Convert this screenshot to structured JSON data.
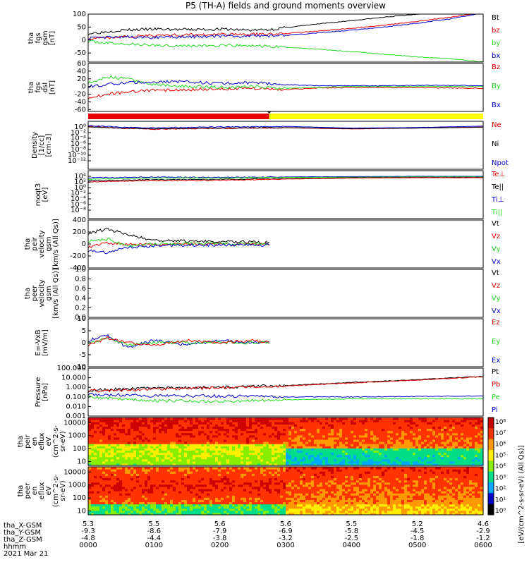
{
  "title": "P5 (TH-A) fields and ground moments overview",
  "colors": {
    "black": "#000000",
    "red": "#e60000",
    "green": "#22dd22",
    "blue": "#0000cc",
    "yellow": "#ffff00",
    "bar_red": "#e60000"
  },
  "chart_data": [
    {
      "type": "line",
      "id": "fgs_gsm",
      "ylabel": [
        "tha",
        "fgs",
        "gsm",
        "[nT]"
      ],
      "ylim": [
        -85,
        100
      ],
      "yticks": [
        100,
        50,
        0,
        -50
      ],
      "legend": [
        "Bt",
        "bz",
        "by",
        "bx"
      ],
      "legend_colors": [
        "black",
        "red",
        "green",
        "blue"
      ],
      "series": [
        {
          "name": "Bt",
          "color": "black",
          "x": [
            0,
            0.5,
            1,
            1.5,
            2,
            2.5,
            2.75,
            3,
            3.5,
            4,
            4.5,
            5,
            5.5,
            6
          ],
          "y": [
            25,
            38,
            42,
            40,
            42,
            38,
            40,
            48,
            62,
            75,
            88,
            100,
            112,
            125
          ]
        },
        {
          "name": "bz",
          "color": "red",
          "x": [
            0,
            0.5,
            1,
            1.5,
            2,
            2.5,
            3,
            3.5,
            4,
            4.5,
            5,
            5.5,
            6
          ],
          "y": [
            5,
            12,
            18,
            20,
            22,
            22,
            25,
            35,
            45,
            58,
            72,
            88,
            108
          ]
        },
        {
          "name": "by",
          "color": "green",
          "x": [
            0,
            0.5,
            1,
            1.5,
            2,
            2.5,
            3,
            3.5,
            4,
            4.5,
            5,
            5.5,
            6
          ],
          "y": [
            -5,
            -15,
            -20,
            -22,
            -22,
            -22,
            -28,
            -35,
            -45,
            -55,
            -65,
            -72,
            -85
          ]
        },
        {
          "name": "bx",
          "color": "blue",
          "x": [
            0,
            0.5,
            1,
            1.5,
            2,
            2.5,
            3,
            3.5,
            4,
            4.5,
            5,
            5.5,
            6
          ],
          "y": [
            8,
            12,
            10,
            12,
            14,
            15,
            18,
            28,
            38,
            50,
            65,
            82,
            105
          ]
        }
      ]
    },
    {
      "type": "line",
      "id": "fgs_dsl",
      "ylabel": [
        "tha",
        "fgs",
        "dsl",
        "[nT]"
      ],
      "ylim": [
        -65,
        60
      ],
      "yticks": [
        60,
        40,
        20,
        0,
        -20,
        -40,
        -60
      ],
      "legend": [
        "Bz",
        "By",
        "Bx"
      ],
      "legend_colors": [
        "red",
        "green",
        "blue"
      ],
      "series": [
        {
          "name": "Bz",
          "color": "red",
          "x": [
            0,
            0.3,
            0.6,
            1,
            1.5,
            2,
            2.5,
            3,
            3.5,
            4,
            4.5,
            5,
            5.5,
            6
          ],
          "y": [
            -30,
            -20,
            -15,
            -10,
            -8,
            -6,
            -5,
            -8,
            -4,
            -3,
            -3,
            -3,
            -4,
            -5
          ]
        },
        {
          "name": "By",
          "color": "green",
          "x": [
            0,
            0.3,
            0.6,
            1,
            1.5,
            2,
            2.5,
            3,
            3.5,
            4,
            4.5,
            5,
            5.5,
            6
          ],
          "y": [
            10,
            25,
            20,
            5,
            0,
            -2,
            0,
            -5,
            -2,
            0,
            0,
            0,
            0,
            0
          ]
        },
        {
          "name": "Bx",
          "color": "blue",
          "x": [
            0,
            0.3,
            0.6,
            1,
            1.5,
            2,
            2.5,
            3,
            3.5,
            4,
            4.5,
            5,
            5.5,
            6
          ],
          "y": [
            0,
            5,
            10,
            12,
            12,
            8,
            10,
            5,
            2,
            2,
            2,
            3,
            3,
            2
          ]
        }
      ]
    },
    {
      "type": "bar",
      "id": "mode_bar",
      "segments": [
        {
          "start": 0,
          "end": 2.75,
          "color": "red"
        },
        {
          "start": 2.75,
          "end": 6,
          "color": "yellow"
        }
      ]
    },
    {
      "type": "line",
      "id": "density",
      "yscale": "log",
      "ylabel": [
        "Density",
        "[1/cc]",
        "[cm-3]"
      ],
      "ylim_exp": [
        -15,
        2
      ],
      "ytick_labels": [
        "10⁰",
        "10⁻²",
        "10⁻⁴",
        "10⁻⁶",
        "10⁻⁸",
        "10⁻¹⁰",
        "10⁻¹²"
      ],
      "ytick_exps": [
        0,
        -2,
        -4,
        -6,
        -8,
        -10,
        -12
      ],
      "legend": [
        "Ne",
        "Ni",
        "Npot"
      ],
      "legend_colors": [
        "red",
        "black",
        "blue"
      ],
      "series": [
        {
          "name": "Ne",
          "color": "red",
          "x": [
            0,
            0.5,
            1,
            2,
            3,
            4,
            5,
            6
          ],
          "y_exp": [
            0.3,
            -0.5,
            -0.8,
            -0.5,
            -0.3,
            -0.7,
            -0.4,
            0.0
          ]
        },
        {
          "name": "Ni",
          "color": "black",
          "x": [
            0,
            0.5,
            1,
            2,
            3,
            4,
            5,
            6
          ],
          "y_exp": [
            0.1,
            -0.4,
            -0.6,
            -0.4,
            -0.2,
            -0.6,
            -0.4,
            -0.1
          ]
        },
        {
          "name": "Npot",
          "color": "blue",
          "x": [
            0,
            0.5,
            1,
            2,
            3,
            4,
            5,
            6
          ],
          "y_exp": [
            0.5,
            -0.1,
            -0.3,
            0.0,
            0.2,
            -0.4,
            -0.2,
            0.3
          ]
        }
      ]
    },
    {
      "type": "line",
      "id": "temps",
      "yscale": "log",
      "ylabel": [
        "moqt3",
        "[eV]"
      ],
      "ylim_exp": [
        -11,
        6
      ],
      "ytick_labels": [
        "10⁴",
        "10²",
        "10⁰",
        "10⁻²",
        "10⁻⁴",
        "10⁻⁶",
        "10⁻⁸"
      ],
      "ytick_exps": [
        4,
        2,
        0,
        -2,
        -4,
        -6,
        -8
      ],
      "legend": [
        "Te⊥",
        "Te||",
        "Ti⊥",
        "Ti||"
      ],
      "legend_colors": [
        "red",
        "black",
        "blue",
        "green"
      ],
      "series": [
        {
          "name": "Ti⊥",
          "color": "blue",
          "x": [
            0,
            1,
            2,
            3,
            4,
            5,
            6
          ],
          "y_exp": [
            3.5,
            3.7,
            3.6,
            3.8,
            3.9,
            4.0,
            4.0
          ]
        },
        {
          "name": "Ti||",
          "color": "green",
          "x": [
            0,
            1,
            2,
            3,
            4,
            5,
            6
          ],
          "y_exp": [
            3.0,
            3.4,
            3.4,
            3.6,
            3.7,
            3.8,
            3.8
          ]
        },
        {
          "name": "Te||",
          "color": "black",
          "x": [
            0,
            1,
            2,
            3,
            4,
            5,
            6
          ],
          "y_exp": [
            2.4,
            2.8,
            2.9,
            3.2,
            3.5,
            3.6,
            3.6
          ]
        },
        {
          "name": "Te⊥",
          "color": "red",
          "x": [
            0,
            1,
            2,
            3,
            4,
            5,
            6
          ],
          "y_exp": [
            2.0,
            2.5,
            2.6,
            3.0,
            3.4,
            3.5,
            3.5
          ]
        }
      ]
    },
    {
      "type": "line",
      "id": "peir_vel",
      "ylabel": [
        "tha",
        "peir",
        "velocity",
        "gsm",
        "[km/s (All Qs)]"
      ],
      "ylim": [
        -400,
        400
      ],
      "yticks": [
        400,
        200,
        0,
        -200,
        -400
      ],
      "legend": [
        "Vt",
        "Vz",
        "Vy",
        "Vx"
      ],
      "legend_colors": [
        "black",
        "red",
        "green",
        "blue"
      ],
      "series": [
        {
          "name": "Vt",
          "color": "black",
          "x": [
            0,
            0.3,
            0.6,
            1,
            1.5,
            2,
            2.5,
            2.75
          ],
          "y": [
            180,
            250,
            150,
            60,
            50,
            40,
            30,
            20
          ]
        },
        {
          "name": "Vz",
          "color": "red",
          "x": [
            0,
            0.3,
            0.6,
            1,
            1.5,
            2,
            2.5,
            2.75
          ],
          "y": [
            -50,
            20,
            0,
            -10,
            0,
            -5,
            0,
            0
          ]
        },
        {
          "name": "Vy",
          "color": "green",
          "x": [
            0,
            0.3,
            0.6,
            1,
            1.5,
            2,
            2.5,
            2.75
          ],
          "y": [
            50,
            80,
            -40,
            0,
            10,
            0,
            5,
            0
          ]
        },
        {
          "name": "Vx",
          "color": "blue",
          "x": [
            0,
            0.3,
            0.6,
            1,
            1.5,
            2,
            2.5,
            2.75
          ],
          "y": [
            -100,
            -150,
            -60,
            -30,
            -20,
            -20,
            -20,
            -10
          ]
        }
      ]
    },
    {
      "type": "line",
      "id": "peer_vel",
      "ylabel": [
        "tha",
        "peer",
        "velocity",
        "gsm",
        "[km/s (All Qs)]"
      ],
      "ylim": [
        0,
        1
      ],
      "yticks": [
        1.0,
        0.8,
        0.6,
        0.4,
        0.2,
        0.0
      ],
      "ytick_labels": [
        "1.0",
        "0.8",
        "0.6",
        "0.4",
        "0.2",
        "0.0"
      ],
      "legend": [
        "Vt",
        "Vz",
        "Vy",
        "Vx"
      ],
      "legend_colors": [
        "black",
        "red",
        "green",
        "blue"
      ],
      "series": []
    },
    {
      "type": "line",
      "id": "efield",
      "ylabel": [
        "E=-VxB",
        "[mV/m]"
      ],
      "ylim": [
        -10,
        10
      ],
      "yticks": [
        10,
        5,
        0,
        -5,
        -10
      ],
      "legend": [
        "Ez",
        "Ey",
        "Ex"
      ],
      "legend_colors": [
        "red",
        "green",
        "blue"
      ],
      "series": [
        {
          "name": "Ex",
          "color": "blue",
          "x": [
            0,
            0.3,
            0.6,
            1,
            1.5,
            2,
            2.5,
            2.75
          ],
          "y": [
            1,
            3,
            -2,
            1,
            -1,
            1,
            0,
            0
          ]
        },
        {
          "name": "Ey",
          "color": "green",
          "x": [
            0,
            0.3,
            0.6,
            1,
            1.5,
            2,
            2.5,
            2.75
          ],
          "y": [
            0,
            2,
            -1,
            0,
            0,
            0,
            0,
            0
          ]
        },
        {
          "name": "Ez",
          "color": "red",
          "x": [
            0,
            0.3,
            0.6,
            1,
            1.5,
            2,
            2.5,
            2.75
          ],
          "y": [
            -1,
            2,
            0,
            -1,
            1,
            0,
            1,
            0
          ]
        }
      ]
    },
    {
      "type": "line",
      "id": "pressure",
      "yscale": "log",
      "ylabel": [
        "Pressure",
        "[nPa]"
      ],
      "ylim_exp": [
        -3,
        2
      ],
      "ytick_labels": [
        "100.000",
        "10.000",
        "1.000",
        "0.100",
        "0.010",
        "0.001"
      ],
      "ytick_exps": [
        2,
        1,
        0,
        -1,
        -2,
        -3
      ],
      "legend": [
        "Pt",
        "Pb",
        "Pe",
        "Pi"
      ],
      "legend_colors": [
        "black",
        "red",
        "green",
        "blue"
      ],
      "series": [
        {
          "name": "Pt",
          "color": "black",
          "x": [
            0,
            1,
            2,
            3,
            4,
            5,
            6
          ],
          "y_exp": [
            -0.3,
            -0.1,
            0.0,
            0.2,
            0.5,
            0.8,
            1.15
          ]
        },
        {
          "name": "Pb",
          "color": "red",
          "x": [
            0,
            1,
            2,
            3,
            4,
            5,
            6
          ],
          "y_exp": [
            -0.4,
            -0.2,
            -0.05,
            0.15,
            0.45,
            0.75,
            1.1
          ]
        },
        {
          "name": "Pi",
          "color": "blue",
          "x": [
            0,
            1,
            2,
            3,
            4,
            5,
            6
          ],
          "y_exp": [
            -0.7,
            -0.9,
            -0.9,
            -1.0,
            -1.0,
            -0.95,
            -0.9
          ]
        },
        {
          "name": "Pe",
          "color": "green",
          "x": [
            0,
            1,
            2,
            3,
            4,
            5,
            6
          ],
          "y_exp": [
            -1.0,
            -1.4,
            -1.5,
            -1.3,
            -1.2,
            -1.2,
            -1.2
          ]
        }
      ]
    },
    {
      "type": "heatmap",
      "id": "peir_spec",
      "yscale": "log",
      "ylabel": [
        "tha",
        "peir",
        "en",
        "eflux",
        "eV",
        "(cm^2-s-",
        "sr-eV)"
      ],
      "ylim_exp": [
        0.7,
        4.4
      ],
      "ytick_labels": [
        "10000",
        "1000",
        "100",
        "10"
      ],
      "ytick_exps": [
        4,
        3,
        2,
        1
      ]
    },
    {
      "type": "heatmap",
      "id": "peer_spec",
      "yscale": "log",
      "ylabel": [
        "tha",
        "peer",
        "en",
        "eflux",
        "eV",
        "(cm^2-s-",
        "sr-eV)"
      ],
      "ylim_exp": [
        0.7,
        4.4
      ],
      "ytick_labels": [
        "10000",
        "1000",
        "100",
        "10"
      ],
      "ytick_exps": [
        4,
        3,
        2,
        1
      ]
    }
  ],
  "colorbar": {
    "ticks": [
      "10⁸",
      "10⁷",
      "10⁶",
      "10⁵",
      "10⁴",
      "10³",
      "10²",
      "10¹",
      "10⁰"
    ],
    "label": "[eV/(cm^2-s-sr-eV) (All Qs)]"
  },
  "xaxis": {
    "xlim": [
      0,
      6
    ],
    "row_labels": [
      "tha_X-GSM",
      "tha_Y-GSM",
      "tha_Z-GSM",
      "hhmm",
      "2021 Mar 21"
    ],
    "columns": [
      [
        "5.3",
        "-9.3",
        "-4.8",
        "0000"
      ],
      [
        "5.5",
        "-8.6",
        "-4.4",
        "0100"
      ],
      [
        "5.6",
        "-7.9",
        "-3.8",
        "0200"
      ],
      [
        "5.6",
        "-6.9",
        "-3.2",
        "0300"
      ],
      [
        "5.5",
        "-5.8",
        "-2.5",
        "0400"
      ],
      [
        "5.2",
        "-4.5",
        "-1.8",
        "0500"
      ],
      [
        "4.6",
        "-2.9",
        "-1.2",
        "0600"
      ]
    ]
  }
}
